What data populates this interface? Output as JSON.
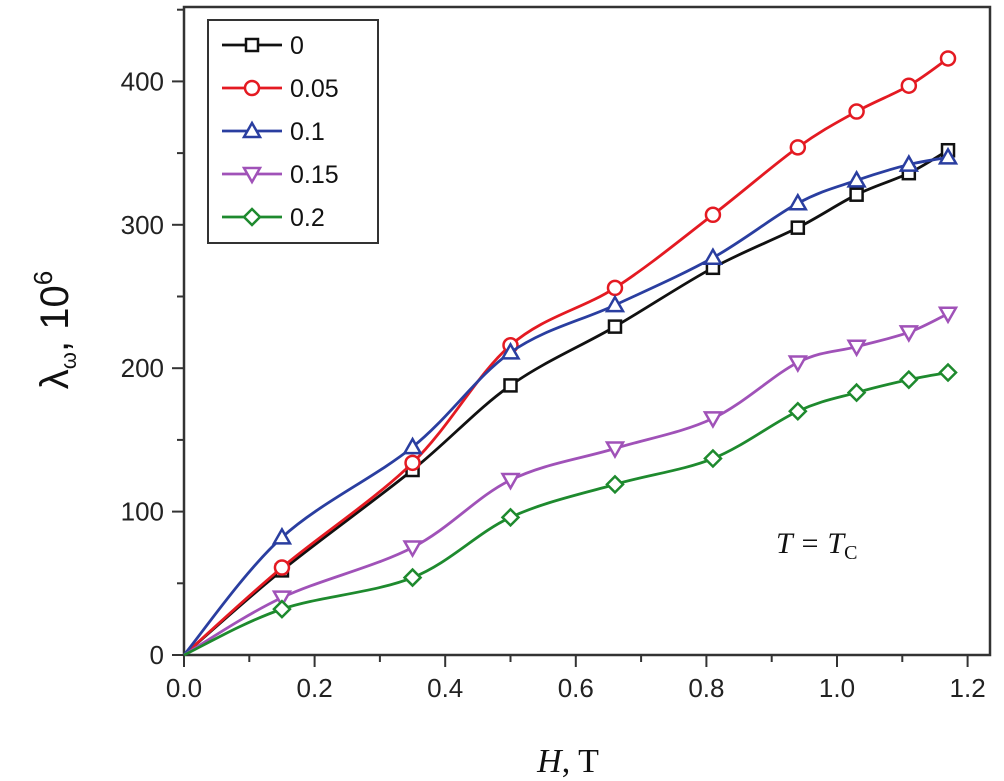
{
  "chart_data": {
    "type": "line",
    "title": "",
    "xlabel": {
      "italic": "H",
      "rest": ", T"
    },
    "ylabel": {
      "symbol": "λ",
      "subscript": "ω",
      "rest": ", 10",
      "superscript": "6"
    },
    "xlim": [
      0,
      1.234
    ],
    "ylim": [
      0,
      452
    ],
    "xticks": [
      "0.0",
      "0.2",
      "0.4",
      "0.6",
      "0.8",
      "1.0",
      "1.2"
    ],
    "yticks": [
      "0",
      "100",
      "200",
      "300",
      "400"
    ],
    "grid": false,
    "legend_position": "top-left",
    "annotation": {
      "main": "T = T",
      "subscript": "C"
    },
    "x": [
      0,
      0.15,
      0.35,
      0.5,
      0.66,
      0.81,
      0.94,
      1.03,
      1.11,
      1.17
    ],
    "series": [
      {
        "name": "0",
        "color": "#111111",
        "marker": "square",
        "values": [
          0,
          59,
          129,
          188,
          229,
          270,
          298,
          321,
          336,
          352
        ]
      },
      {
        "name": "0.05",
        "color": "#e41a22",
        "marker": "circle",
        "values": [
          0,
          61,
          134,
          216,
          256,
          307,
          354,
          379,
          397,
          416
        ]
      },
      {
        "name": "0.1",
        "color": "#2a3ea0",
        "marker": "triangle-up",
        "values": [
          0,
          82,
          145,
          211,
          244,
          277,
          315,
          331,
          342,
          347
        ]
      },
      {
        "name": "0.15",
        "color": "#a052b8",
        "marker": "triangle-down",
        "values": [
          0,
          40,
          75,
          122,
          144,
          165,
          204,
          215,
          225,
          238
        ]
      },
      {
        "name": "0.2",
        "color": "#1e8a2e",
        "marker": "diamond",
        "values": [
          0,
          32,
          54,
          96,
          119,
          137,
          170,
          183,
          192,
          197
        ]
      }
    ]
  }
}
